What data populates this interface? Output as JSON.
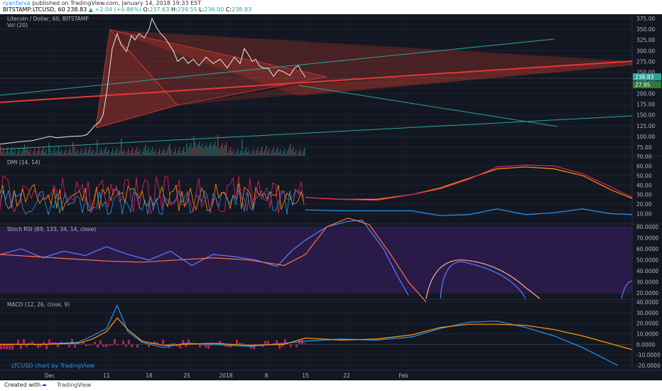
{
  "header": {
    "author": "ryanfarva",
    "published": "published on TradingView.com, January 14, 2018 19:33 EST",
    "symbol_line": "BITSTAMP:LTCUSD, 60",
    "last": "238.83",
    "change": "▲ +2.04 (+0.86%)",
    "ohlc": [
      {
        "k": "O:",
        "v": "237.63"
      },
      {
        "k": "H:",
        "v": "239.55"
      },
      {
        "k": "L:",
        "v": "236.00"
      },
      {
        "k": "C:",
        "v": "238.83"
      }
    ]
  },
  "colors": {
    "background": "#131722",
    "price_line": "#e8e8e8",
    "triangle": "#c0392b",
    "trend_red": "#e53935",
    "teal": "#26a69a",
    "dmi_plus": "#ff9800",
    "dmi_minus": "#2196f3",
    "adx": "#e91e63",
    "stoch_bg": "#2a1a4a",
    "stoch_k": "#5b7fff",
    "stoch_d": "#ff7043",
    "macd": "#2196f3",
    "signal": "#ff9800",
    "histogram": "#e91e63"
  },
  "chart_data": [
    {
      "type": "line",
      "title": "Litecoin / Dollar, 60, BITSTAMP",
      "subtitle": "Vol (20)",
      "x_ticks": [
        "Dec",
        "11",
        "18",
        "25",
        "2018",
        "8",
        "15",
        "22",
        "Feb"
      ],
      "y_ticks": [
        75,
        100,
        125,
        150,
        175,
        200,
        225,
        250,
        275,
        300,
        325,
        350,
        375
      ],
      "ylim": [
        55,
        385
      ],
      "price_labels": [
        "238.83",
        "27.95"
      ],
      "series": [
        {
          "x": [
            0,
            15,
            30,
            45,
            60,
            70,
            80,
            100,
            115,
            122,
            128,
            133,
            140,
            145,
            150,
            158,
            165,
            170,
            178,
            185,
            190,
            196,
            203,
            210,
            214,
            220,
            226,
            232,
            238,
            244,
            250,
            258,
            265,
            272,
            280,
            290,
            300,
            310,
            320,
            330,
            338,
            344,
            350,
            355,
            360,
            365,
            370,
            378,
            385,
            392,
            400,
            408,
            415,
            420,
            425,
            430
          ],
          "values": [
            82,
            85,
            88,
            90,
            96,
            100,
            97,
            100,
            101,
            104,
            114,
            125,
            133,
            150,
            200,
            305,
            340,
            315,
            298,
            335,
            325,
            340,
            330,
            350,
            375,
            355,
            340,
            330,
            315,
            300,
            275,
            285,
            270,
            280,
            265,
            285,
            270,
            280,
            260,
            285,
            270,
            305,
            290,
            275,
            280,
            265,
            260,
            258,
            240,
            255,
            250,
            242,
            260,
            265,
            250,
            238
          ]
        }
      ]
    },
    {
      "type": "line",
      "title": "DMI (14, 14)",
      "y_ticks": [
        10,
        20,
        30,
        40,
        50,
        60,
        70
      ],
      "ylim": [
        0,
        70
      ],
      "series": [
        {
          "x": [
            430,
            480,
            530,
            580,
            620,
            660,
            700,
            740,
            780,
            820,
            860,
            890
          ],
          "values": [
            27,
            25,
            25,
            30,
            37,
            47,
            57,
            59,
            57,
            50,
            35,
            26
          ]
        },
        {
          "x": [
            430,
            480,
            530,
            580,
            620,
            660,
            700,
            740,
            780,
            820,
            860,
            890
          ],
          "values": [
            14,
            13,
            13,
            13,
            8,
            9,
            15,
            9,
            11,
            15,
            10,
            9
          ]
        },
        {
          "x": [
            430,
            480,
            530,
            580,
            620,
            660,
            700,
            740,
            780,
            820,
            860,
            890
          ],
          "values": [
            27,
            25,
            24,
            30,
            36,
            46,
            59,
            61,
            60,
            52,
            38,
            27
          ]
        }
      ]
    },
    {
      "type": "line",
      "title": "Stoch RSI (89, 133, 34, 14, close)",
      "y_ticks": [
        20,
        30,
        40,
        50,
        60,
        70,
        80
      ],
      "ylim": [
        15,
        82
      ],
      "series": [
        {
          "x": [
            0,
            30,
            60,
            90,
            120,
            150,
            180,
            210,
            240,
            270,
            300,
            330,
            360,
            390,
            410,
            430,
            460,
            490,
            510,
            540,
            560,
            575
          ],
          "values": [
            55,
            60,
            52,
            58,
            54,
            62,
            55,
            50,
            58,
            45,
            55,
            53,
            50,
            44,
            58,
            68,
            80,
            85,
            86,
            60,
            35,
            18
          ]
        },
        {
          "x": [
            0,
            50,
            100,
            150,
            200,
            250,
            300,
            350,
            400,
            430,
            460,
            490,
            520,
            550,
            575,
            600
          ],
          "values": [
            55,
            53,
            51,
            49,
            48,
            50,
            52,
            50,
            45,
            55,
            80,
            88,
            82,
            55,
            30,
            12
          ]
        }
      ]
    },
    {
      "type": "line",
      "title": "MACD (12, 26, close, 9)",
      "y_ticks": [
        -20,
        -10,
        0,
        10,
        20,
        30,
        40
      ],
      "ylim": [
        -24,
        42
      ],
      "series": [
        {
          "x": [
            0,
            60,
            110,
            130,
            150,
            165,
            180,
            200,
            230,
            260,
            300,
            350,
            400,
            430,
            480,
            530,
            580,
            620,
            660,
            700,
            740,
            780,
            820,
            870
          ],
          "values": [
            0,
            0,
            2,
            8,
            15,
            37,
            12,
            2,
            -3,
            1,
            0,
            -2,
            1,
            3,
            5,
            4,
            7,
            15,
            21,
            22,
            16,
            8,
            -3,
            -20
          ]
        },
        {
          "x": [
            0,
            60,
            110,
            130,
            150,
            165,
            180,
            200,
            230,
            260,
            300,
            350,
            400,
            430,
            480,
            530,
            580,
            620,
            660,
            700,
            740,
            780,
            820,
            890
          ],
          "values": [
            0,
            0,
            1,
            5,
            12,
            25,
            14,
            3,
            -1,
            0,
            1,
            -1,
            0,
            6,
            4,
            5,
            9,
            16,
            19,
            19,
            18,
            14,
            8,
            -5
          ]
        }
      ]
    }
  ],
  "footer": {
    "credit": "LTCUSD chart by TradingView",
    "created_with": "Created with",
    "brand": "TradingView"
  }
}
